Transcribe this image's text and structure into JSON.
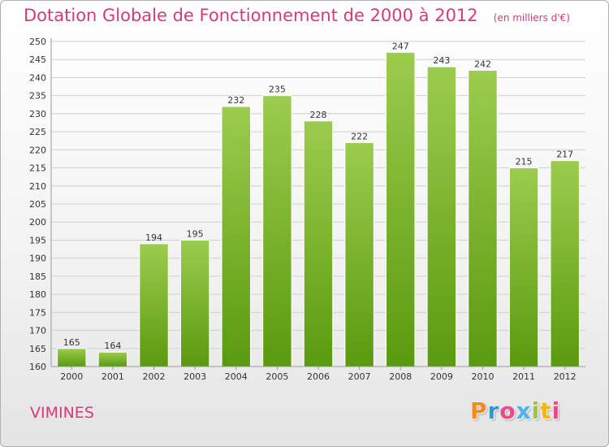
{
  "header": {
    "title": "Dotation Globale de Fonctionnement de 2000 à 2012",
    "subtitle": "(en milliers d'€)"
  },
  "footer": {
    "commune": "VIMINES",
    "logo_text": "Proxiti",
    "logo_colors": [
      "#f28c1e",
      "#2f9ad6",
      "#e94b8a",
      "#4fb3e8",
      "#9bc53d",
      "#f2b51e",
      "#e94b8a"
    ]
  },
  "colors": {
    "bar_top": "#9ccc4e",
    "bar_bottom": "#5a9a0e",
    "title": "#d9387a",
    "grid": "#d0d0d0"
  },
  "chart_data": {
    "type": "bar",
    "title": "Dotation Globale de Fonctionnement de 2000 à 2012",
    "subtitle": "(en milliers d'€)",
    "xlabel": "",
    "ylabel": "",
    "categories": [
      "2000",
      "2001",
      "2002",
      "2003",
      "2004",
      "2005",
      "2006",
      "2007",
      "2008",
      "2009",
      "2010",
      "2011",
      "2012"
    ],
    "values": [
      165,
      164,
      194,
      195,
      232,
      235,
      228,
      222,
      247,
      243,
      242,
      215,
      217
    ],
    "ylim": [
      160,
      250
    ],
    "ytick_step": 5,
    "grid": true,
    "data_labels": true
  }
}
